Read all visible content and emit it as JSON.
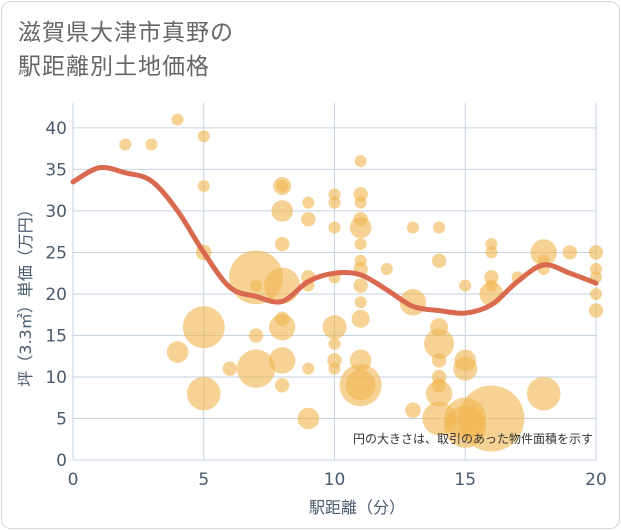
{
  "title_line1": "滋賀県大津市真野の",
  "title_line2": "駅距離別土地価格",
  "note": "円の大きさは、取引のあった物件面積を示す",
  "colors": {
    "bubble": "#f0b653",
    "line": "#d9694f",
    "grid": "#c5d2e0",
    "axis_text": "#4a5a6e"
  },
  "chart_data": {
    "type": "scatter",
    "xlabel": "駅距離（分）",
    "ylabel": "坪（3.3㎡）単価（万円）",
    "xlim": [
      0,
      20
    ],
    "ylim": [
      0,
      43
    ],
    "x_ticks": [
      "0",
      "5",
      "10",
      "15",
      "20"
    ],
    "y_ticks": [
      "0",
      "5",
      "10",
      "15",
      "20",
      "25",
      "30",
      "35",
      "40"
    ],
    "grid": true,
    "points": [
      {
        "x": 2,
        "y": 38,
        "s": 1
      },
      {
        "x": 3,
        "y": 38,
        "s": 1
      },
      {
        "x": 4,
        "y": 41,
        "s": 1
      },
      {
        "x": 5,
        "y": 39,
        "s": 1
      },
      {
        "x": 5,
        "y": 33,
        "s": 1
      },
      {
        "x": 5,
        "y": 25,
        "s": 1.3
      },
      {
        "x": 4,
        "y": 13,
        "s": 1.8
      },
      {
        "x": 5,
        "y": 16,
        "s": 3.5
      },
      {
        "x": 5,
        "y": 8,
        "s": 2.8
      },
      {
        "x": 6,
        "y": 11,
        "s": 1.2
      },
      {
        "x": 7,
        "y": 22,
        "s": 4.5
      },
      {
        "x": 7,
        "y": 21,
        "s": 1
      },
      {
        "x": 7,
        "y": 15,
        "s": 1.2
      },
      {
        "x": 7,
        "y": 11,
        "s": 3.2
      },
      {
        "x": 8,
        "y": 33,
        "s": 1.5
      },
      {
        "x": 8,
        "y": 33,
        "s": 1
      },
      {
        "x": 8,
        "y": 30,
        "s": 1.8
      },
      {
        "x": 8,
        "y": 26,
        "s": 1.2
      },
      {
        "x": 8,
        "y": 21,
        "s": 3
      },
      {
        "x": 8,
        "y": 17,
        "s": 1.2
      },
      {
        "x": 8,
        "y": 16,
        "s": 2.2
      },
      {
        "x": 8,
        "y": 12,
        "s": 2.2
      },
      {
        "x": 8,
        "y": 9,
        "s": 1.2
      },
      {
        "x": 9,
        "y": 31,
        "s": 1
      },
      {
        "x": 9,
        "y": 29,
        "s": 1.2
      },
      {
        "x": 9,
        "y": 22,
        "s": 1.2
      },
      {
        "x": 9,
        "y": 21,
        "s": 1
      },
      {
        "x": 9,
        "y": 11,
        "s": 1
      },
      {
        "x": 9,
        "y": 5,
        "s": 1.8
      },
      {
        "x": 10,
        "y": 32,
        "s": 1
      },
      {
        "x": 10,
        "y": 31,
        "s": 1
      },
      {
        "x": 10,
        "y": 28,
        "s": 1
      },
      {
        "x": 10,
        "y": 22,
        "s": 1
      },
      {
        "x": 10,
        "y": 16,
        "s": 2
      },
      {
        "x": 10,
        "y": 14,
        "s": 1
      },
      {
        "x": 10,
        "y": 12,
        "s": 1.2
      },
      {
        "x": 10,
        "y": 11,
        "s": 1
      },
      {
        "x": 11,
        "y": 36,
        "s": 1
      },
      {
        "x": 11,
        "y": 32,
        "s": 1.2
      },
      {
        "x": 11,
        "y": 31,
        "s": 1
      },
      {
        "x": 11,
        "y": 29,
        "s": 1.2
      },
      {
        "x": 11,
        "y": 28,
        "s": 1.8
      },
      {
        "x": 11,
        "y": 26,
        "s": 1
      },
      {
        "x": 11,
        "y": 24,
        "s": 1
      },
      {
        "x": 11,
        "y": 23,
        "s": 1.2
      },
      {
        "x": 11,
        "y": 21,
        "s": 1.2
      },
      {
        "x": 11,
        "y": 19,
        "s": 1
      },
      {
        "x": 11,
        "y": 17,
        "s": 1.5
      },
      {
        "x": 11,
        "y": 12,
        "s": 1.8
      },
      {
        "x": 11,
        "y": 9,
        "s": 3.5
      },
      {
        "x": 11,
        "y": 9,
        "s": 2.5
      },
      {
        "x": 12,
        "y": 23,
        "s": 1
      },
      {
        "x": 13,
        "y": 28,
        "s": 1
      },
      {
        "x": 13,
        "y": 19,
        "s": 2.2
      },
      {
        "x": 13,
        "y": 6,
        "s": 1.3
      },
      {
        "x": 14,
        "y": 28,
        "s": 1
      },
      {
        "x": 14,
        "y": 24,
        "s": 1.2
      },
      {
        "x": 14,
        "y": 16,
        "s": 1.5
      },
      {
        "x": 14,
        "y": 14,
        "s": 2.5
      },
      {
        "x": 14,
        "y": 12,
        "s": 1.2
      },
      {
        "x": 14,
        "y": 10,
        "s": 1.2
      },
      {
        "x": 14,
        "y": 9,
        "s": 1.2
      },
      {
        "x": 14,
        "y": 8,
        "s": 2.2
      },
      {
        "x": 14,
        "y": 5,
        "s": 2.8
      },
      {
        "x": 15,
        "y": 21,
        "s": 1
      },
      {
        "x": 15,
        "y": 12,
        "s": 1.8
      },
      {
        "x": 15,
        "y": 11,
        "s": 2
      },
      {
        "x": 15,
        "y": 5,
        "s": 3.5
      },
      {
        "x": 15,
        "y": 4,
        "s": 3.5
      },
      {
        "x": 16,
        "y": 26,
        "s": 1
      },
      {
        "x": 16,
        "y": 25,
        "s": 1
      },
      {
        "x": 16,
        "y": 22,
        "s": 1.2
      },
      {
        "x": 16,
        "y": 21,
        "s": 1
      },
      {
        "x": 16,
        "y": 20,
        "s": 2
      },
      {
        "x": 16,
        "y": 5,
        "s": 5.5
      },
      {
        "x": 17,
        "y": 22,
        "s": 1
      },
      {
        "x": 18,
        "y": 25,
        "s": 2.2
      },
      {
        "x": 18,
        "y": 24,
        "s": 1
      },
      {
        "x": 18,
        "y": 23,
        "s": 1
      },
      {
        "x": 18,
        "y": 8,
        "s": 2.8
      },
      {
        "x": 19,
        "y": 25,
        "s": 1.2
      },
      {
        "x": 20,
        "y": 25,
        "s": 1.2
      },
      {
        "x": 20,
        "y": 23,
        "s": 1
      },
      {
        "x": 20,
        "y": 22,
        "s": 1
      },
      {
        "x": 20,
        "y": 20,
        "s": 1
      },
      {
        "x": 20,
        "y": 18,
        "s": 1.2
      }
    ],
    "trend": {
      "x": [
        0,
        1,
        2,
        3,
        4,
        5,
        6,
        7,
        8,
        9,
        10,
        11,
        12,
        13,
        14,
        15,
        16,
        17,
        18,
        19,
        20
      ],
      "y": [
        33.5,
        35.2,
        34.6,
        33.6,
        30.0,
        25.0,
        20.8,
        19.7,
        19.1,
        21.5,
        22.5,
        22.3,
        20.5,
        18.5,
        18.0,
        17.7,
        18.7,
        21.5,
        23.5,
        22.5,
        21.3
      ]
    }
  }
}
